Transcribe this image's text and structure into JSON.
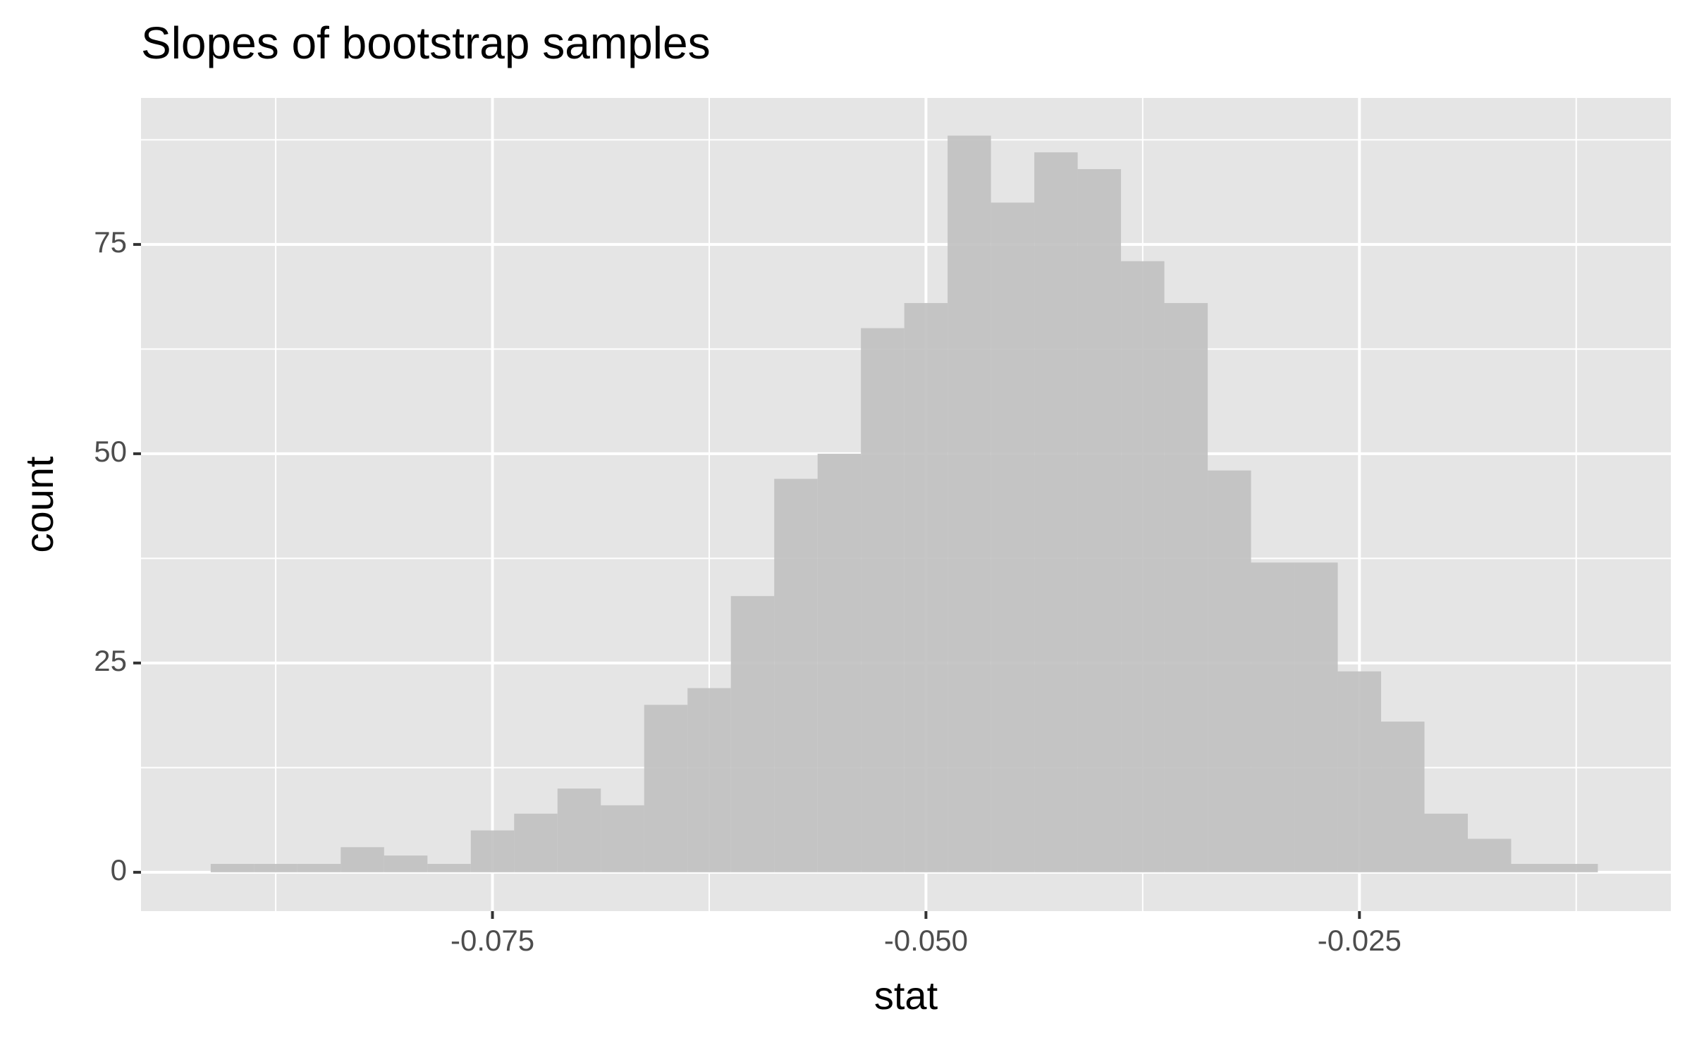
{
  "chart_data": {
    "type": "histogram",
    "title": "Slopes of bootstrap samples",
    "x_label": "stat",
    "y_label": "count",
    "bins": [
      -0.09125,
      -0.08875,
      -0.08625,
      -0.08375,
      -0.08125,
      -0.07875,
      -0.07625,
      -0.07375,
      -0.07125,
      -0.06875,
      -0.06625,
      -0.06375,
      -0.06125,
      -0.05875,
      -0.05625,
      -0.05375,
      -0.05125,
      -0.04875,
      -0.04625,
      -0.04375,
      -0.04125,
      -0.03875,
      -0.03625,
      -0.03375,
      -0.03125,
      -0.02875,
      -0.02625,
      -0.02375,
      -0.02125,
      -0.01875,
      -0.01625,
      -0.01375,
      -0.01125
    ],
    "values": [
      1,
      1,
      1,
      3,
      2,
      1,
      5,
      7,
      10,
      8,
      20,
      22,
      33,
      47,
      50,
      65,
      68,
      88,
      80,
      86,
      84,
      73,
      68,
      48,
      37,
      37,
      24,
      18,
      7,
      4,
      1,
      1
    ],
    "color": "#c0c0c0",
    "xlim": [
      -0.09527,
      -0.00704
    ],
    "ylim": [
      -4.64,
      92.5
    ],
    "xticks": [
      -0.075,
      {
        "value": -0.05,
        "label": "-0.050"
      },
      -0.025
    ],
    "yticks": [
      0,
      25,
      50,
      75
    ],
    "x_minor_grid": [
      -0.0875,
      -0.0625,
      -0.0375,
      -0.0125
    ],
    "y_minor_grid": [
      12.5,
      37.5,
      62.5,
      87.5
    ],
    "grid": true
  }
}
